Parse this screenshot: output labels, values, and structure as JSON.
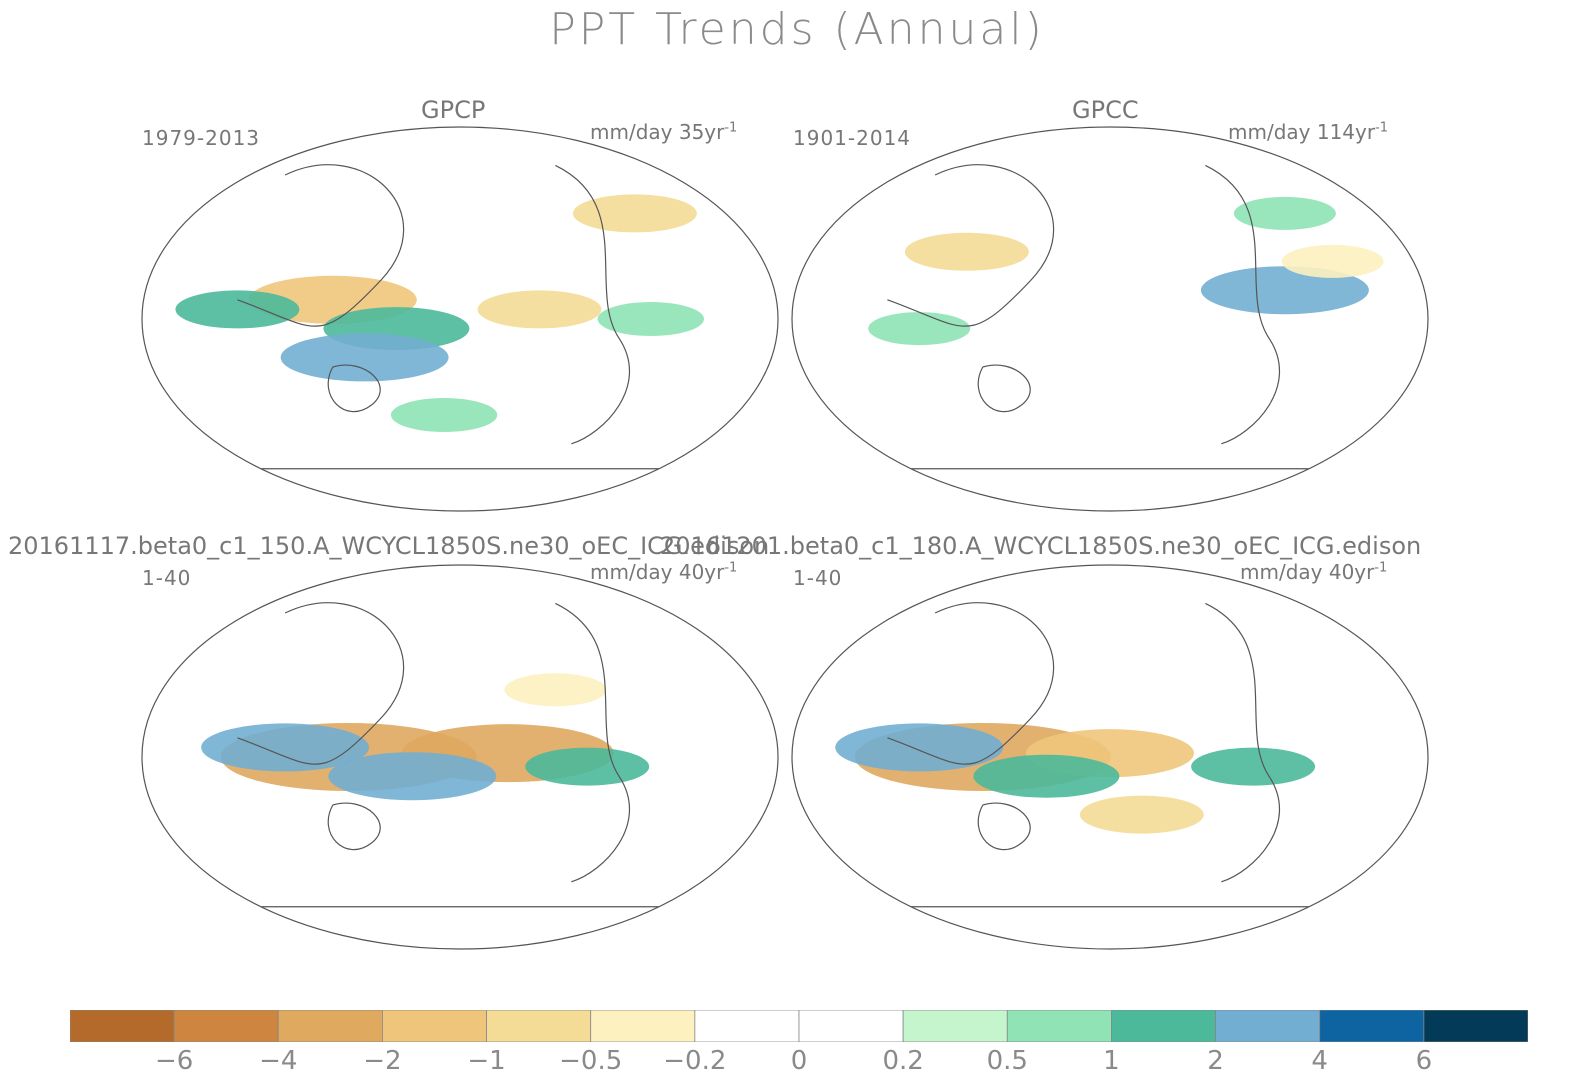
{
  "title": "PPT Trends (Annual)",
  "chart_data": {
    "type": "heatmap",
    "title": "PPT Trends (Annual)",
    "variable": "precipitation trend",
    "projection": "Robinson",
    "panels": [
      {
        "title": "GPCP",
        "period": "1979-2013",
        "units": "mm/day 35yr",
        "units_exp": "-1",
        "blobs": [
          [
            -0.4,
            0.1,
            -2.0
          ],
          [
            -0.2,
            -0.05,
            1.5
          ],
          [
            0.25,
            0.05,
            -1.0
          ],
          [
            -0.3,
            -0.2,
            2.0
          ],
          [
            0.55,
            0.55,
            -1.0
          ],
          [
            -0.05,
            -0.5,
            0.6
          ],
          [
            0.6,
            0.0,
            0.6
          ],
          [
            -0.7,
            0.05,
            1.0
          ]
        ]
      },
      {
        "title": "GPCC",
        "period": "1901-2014",
        "units": "mm/day 114yr",
        "units_exp": "-1",
        "blobs": [
          [
            0.55,
            0.15,
            2.0
          ],
          [
            0.55,
            0.55,
            0.5
          ],
          [
            -0.45,
            0.35,
            -1.0
          ],
          [
            0.7,
            0.3,
            -0.5
          ],
          [
            -0.6,
            -0.05,
            0.5
          ]
        ]
      },
      {
        "title": "20161117.beta0_c1_150.A_WCYCL1850S.ne30_oEC_ICG.edison",
        "period": "1-40",
        "units": "mm/day 40yr",
        "units_exp": "-1",
        "blobs": [
          [
            -0.35,
            0.0,
            -4.0
          ],
          [
            0.15,
            0.02,
            -3.0
          ],
          [
            -0.15,
            -0.1,
            2.0
          ],
          [
            -0.55,
            0.05,
            2.0
          ],
          [
            0.4,
            -0.05,
            1.0
          ],
          [
            0.3,
            0.35,
            -0.5
          ]
        ]
      },
      {
        "title": "20161201.beta0_c1_180.A_WCYCL1850S.ne30_oEC_ICG.edison",
        "period": "1-40",
        "units": "mm/day 40yr",
        "units_exp": "-1",
        "blobs": [
          [
            -0.4,
            0.0,
            -4.0
          ],
          [
            0.0,
            0.02,
            -2.0
          ],
          [
            -0.2,
            -0.1,
            1.5
          ],
          [
            -0.6,
            0.05,
            2.0
          ],
          [
            0.45,
            -0.05,
            1.0
          ],
          [
            0.1,
            -0.3,
            -1.0
          ]
        ]
      }
    ],
    "colorbar": {
      "labels": [
        "-6",
        "-4",
        "-2",
        "-1",
        "-0.5",
        "-0.2",
        "0",
        "0.2",
        "0.5",
        "1",
        "2",
        "4",
        "6"
      ],
      "colors": [
        "#b36a2b",
        "#cd853f",
        "#dfa95f",
        "#efc57b",
        "#f4dc96",
        "#fdf1c0",
        "#ffffff",
        "#ffffff",
        "#c4f5cc",
        "#8fe3b5",
        "#4bb99a",
        "#72aed1",
        "#0e64a0",
        "#033a58"
      ]
    }
  }
}
